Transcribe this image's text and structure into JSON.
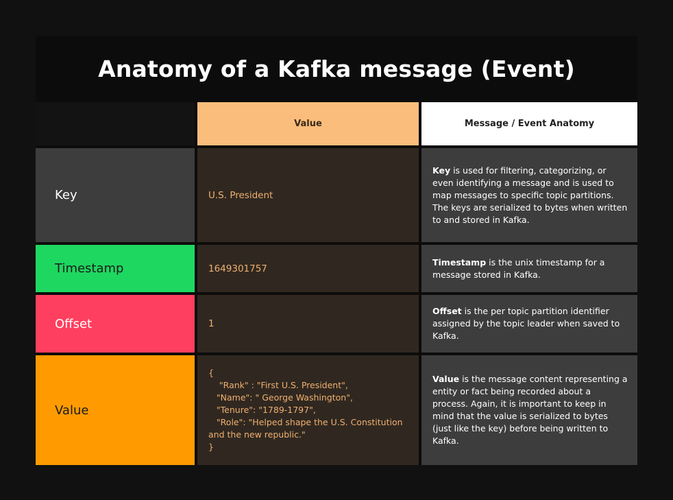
{
  "title": "Anatomy of a Kafka message (Event)",
  "headers": {
    "value": "Value",
    "anatomy": "Message / Event Anatomy"
  },
  "rows": [
    {
      "label": "Key",
      "label_bg": "#3d3d3d",
      "label_color": "#ffffff",
      "value": "U.S. President",
      "anatomy_term": "Key",
      "anatomy_text": " is used for filtering, categorizing, or even identifying a message and is used to map messages to specific topic partitions.  The keys are serialized to bytes when written to and stored in Kafka."
    },
    {
      "label": "Timestamp",
      "label_bg": "#1ed760",
      "label_color": "#1a1a1a",
      "value": "1649301757",
      "anatomy_term": "Timestamp",
      "anatomy_text": " is the unix timestamp for a message stored in Kafka."
    },
    {
      "label": "Offset",
      "label_bg": "#ff3f5f",
      "label_color": "#ffffff",
      "value": "1",
      "anatomy_term": "Offset",
      "anatomy_text": " is the per topic partition identifier assigned by the topic leader when saved to Kafka."
    },
    {
      "label": "Value",
      "label_bg": "#ff9b00",
      "label_color": "#1a1a1a",
      "value": "{\n    \"Rank\" : \"First U.S. President\",\n   \"Name\": \" George Washington\",\n   \"Tenure\": \"1789-1797\",\n   \"Role\": \"Helped shape the U.S. Constitution and the new republic.\"\n}",
      "anatomy_term": "Value",
      "anatomy_text": " is the message content representing a entity or fact being recorded about a process. Again, it is important to keep in mind that the value is serialized to bytes (just like the key) before being written to Kafka."
    }
  ],
  "colors": {
    "background": "#111111",
    "header_value_bg": "#fbbd7c",
    "header_anatomy_bg": "#ffffff",
    "value_cell_bg": "#302820",
    "value_text": "#f0b070",
    "anatomy_cell_bg": "#3d3d3d"
  }
}
